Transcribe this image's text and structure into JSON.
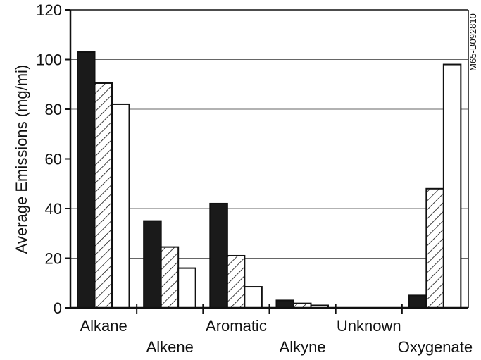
{
  "chart_data": {
    "type": "bar",
    "ylabel": "Average Emissions (mg/mi)",
    "ylim": [
      0,
      120
    ],
    "yticks": [
      0,
      20,
      40,
      60,
      80,
      100,
      120
    ],
    "grid": true,
    "categories": [
      "Alkane",
      "Alkene",
      "Aromatic",
      "Alkyne",
      "Unknown",
      "Oxygenate"
    ],
    "series": [
      {
        "fill": "black",
        "values": [
          103,
          35,
          42,
          3,
          0,
          5
        ]
      },
      {
        "fill": "hatched",
        "values": [
          90.5,
          24.5,
          21,
          1.8,
          0,
          48
        ]
      },
      {
        "fill": "white",
        "values": [
          82,
          16,
          8.5,
          1,
          0,
          98
        ]
      }
    ],
    "code": "M65-B092810"
  }
}
